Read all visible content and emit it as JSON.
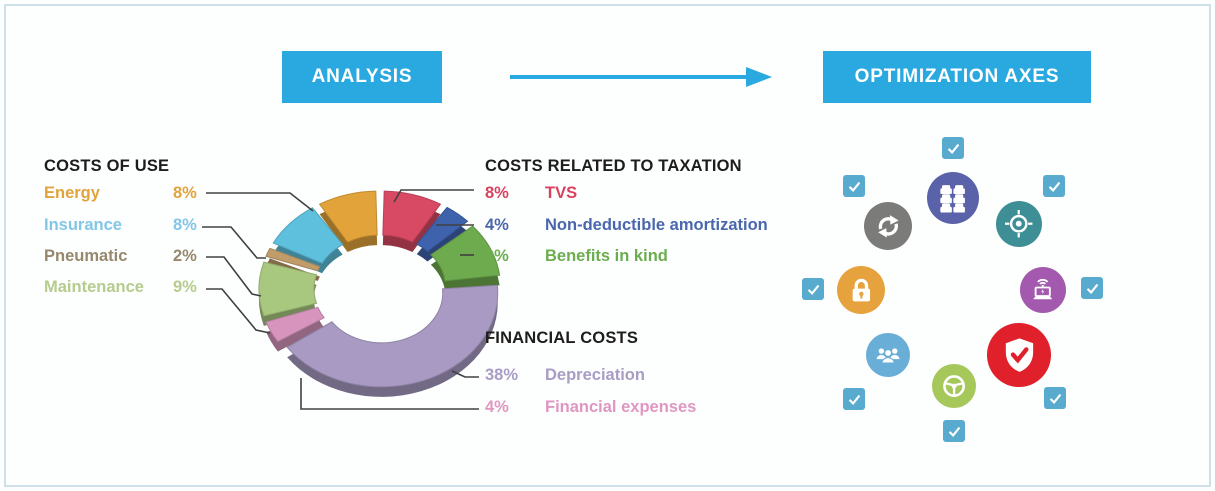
{
  "header": {
    "analysis_label": "ANALYSIS",
    "optimization_label": "OPTIMIZATION AXES",
    "accent_color": "#29a9e0"
  },
  "chart_data": {
    "type": "pie",
    "donut": true,
    "unit": "%",
    "direction": "clockwise",
    "start_angle_deg": 0,
    "segments": [
      {
        "label": "TVS",
        "group": "COSTS RELATED TO TAXATION",
        "value": 8,
        "color": "#d84a63"
      },
      {
        "label": "Non-deductible amortization",
        "group": "COSTS RELATED TO TAXATION",
        "value": 4,
        "color": "#3f62ad"
      },
      {
        "label": "Benefits in kind",
        "group": "COSTS RELATED TO TAXATION",
        "value": 9,
        "color": "#6eab4e"
      },
      {
        "label": "Depreciation",
        "group": "FINANCIAL COSTS",
        "value": 38,
        "color": "#a89ac2"
      },
      {
        "label": "Financial expenses",
        "group": "FINANCIAL COSTS",
        "value": 4,
        "color": "#d795bd"
      },
      {
        "label": "Maintenance",
        "group": "COSTS OF USE",
        "value": 9,
        "color": "#a9c87f"
      },
      {
        "label": "Pneumatic",
        "group": "COSTS OF USE",
        "value": 2,
        "color": "#c09c6a"
      },
      {
        "label": "Insurance",
        "group": "COSTS OF USE",
        "value": 8,
        "color": "#5fc0dd"
      },
      {
        "label": "Energy",
        "group": "COSTS OF USE",
        "value": 8,
        "color": "#e2a33a"
      }
    ]
  },
  "legend_groups": [
    {
      "title": "COSTS OF USE",
      "items": [
        {
          "label": "Energy",
          "value": "8%",
          "color": "#e3a33b"
        },
        {
          "label": "Insurance",
          "value": "8%",
          "color": "#82c6e8"
        },
        {
          "label": "Pneumatic",
          "value": "2%",
          "color": "#97886d"
        },
        {
          "label": "Maintenance",
          "value": "9%",
          "color": "#b5cc8d"
        }
      ]
    },
    {
      "title": "COSTS RELATED TO TAXATION",
      "items": [
        {
          "value": "8%",
          "label": "TVS",
          "color": "#d9425f"
        },
        {
          "value": "4%",
          "label": "Non-deductible amortization",
          "color": "#4a67ad"
        },
        {
          "value": "9%",
          "label": "Benefits in kind",
          "color": "#6cad50"
        }
      ]
    },
    {
      "title": "FINANCIAL COSTS",
      "items": [
        {
          "value": "38%",
          "label": "Depreciation",
          "color": "#a99cc5"
        },
        {
          "value": "4%",
          "label": "Financial expenses",
          "color": "#df97c2"
        }
      ]
    }
  ],
  "optimization": {
    "checkbox_color": "#58aacf",
    "icons": {
      "refresh": {
        "glyph": "refresh-arrows",
        "color": "#7b7b79"
      },
      "fleet": {
        "glyph": "fleet-cars",
        "color": "#5a63a9"
      },
      "target": {
        "glyph": "target-crosshair",
        "color": "#3e8e96"
      },
      "lock": {
        "glyph": "padlock",
        "color": "#e6a23c"
      },
      "laptop": {
        "glyph": "connected-laptop",
        "color": "#a259ae"
      },
      "people": {
        "glyph": "team",
        "color": "#68aed6"
      },
      "steering": {
        "glyph": "steering-wheel",
        "color": "#a6c85b"
      },
      "shield": {
        "glyph": "shield-check",
        "color": "#e0202a"
      }
    }
  }
}
